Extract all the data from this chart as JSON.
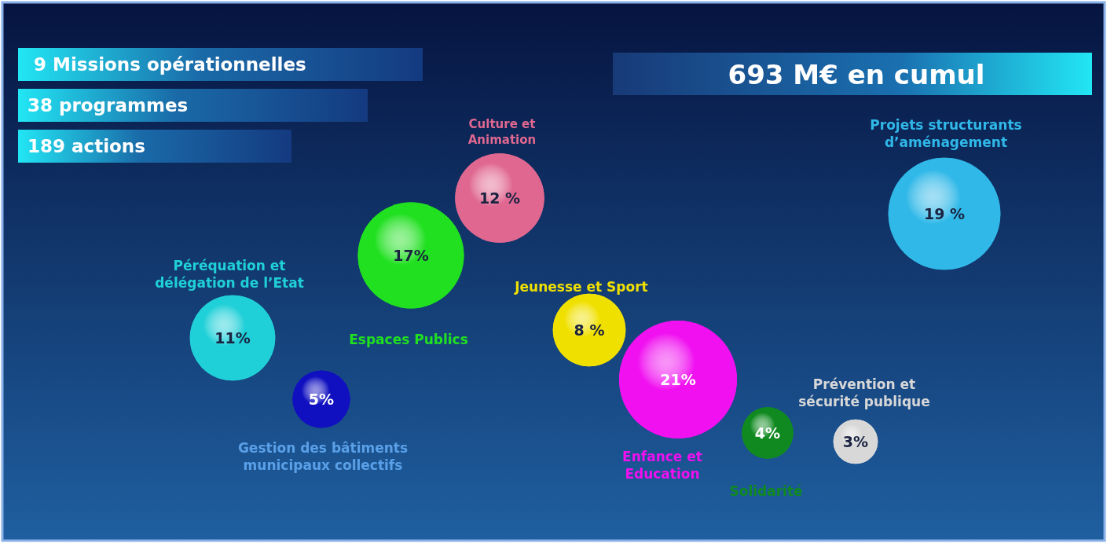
{
  "chart_data": {
    "type": "other",
    "title": "693 M€ en cumul",
    "annotations": [
      "9 Missions opérationnelles",
      "38 programmes",
      "189 actions"
    ],
    "categories": [
      "Péréquation et délégation de l’Etat",
      "Gestion des bâtiments municipaux collectifs",
      "Espaces Publics",
      "Culture et Animation",
      "Jeunesse et Sport",
      "Enfance et Education",
      "Solidarité",
      "Prévention et sécurité publique",
      "Projets structurants d’aménagement"
    ],
    "values": [
      11,
      5,
      17,
      12,
      8,
      21,
      4,
      3,
      19
    ],
    "value_labels": [
      "11%",
      "5%",
      "17%",
      "12 %",
      "8 %",
      "21%",
      "4%",
      "3%",
      "19 %"
    ],
    "colors": [
      "#20d0d8",
      "#1010c0",
      "#20e020",
      "#e06890",
      "#f0e000",
      "#f010f0",
      "#108a20",
      "#d8d8d8",
      "#30b8e8"
    ]
  }
}
